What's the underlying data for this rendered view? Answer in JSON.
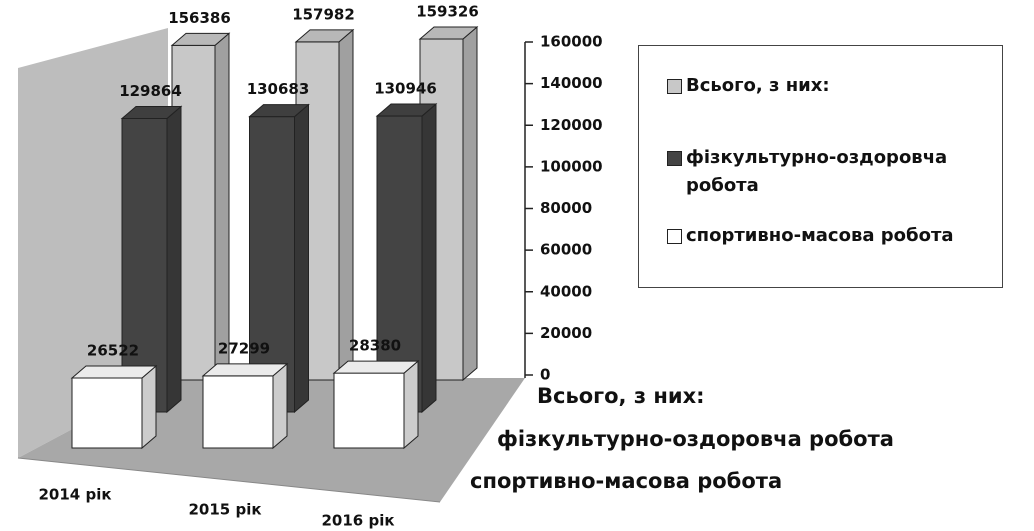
{
  "chart_data": {
    "type": "bar3d",
    "categories": [
      "2014 рік",
      "2015 рік",
      "2016 рік"
    ],
    "series": [
      {
        "name": "Всього, з них:",
        "color": "#c8c8c8",
        "values": [
          156386,
          157982,
          159326
        ]
      },
      {
        "name": "фізкультурно-оздоровча робота",
        "color": "#444444",
        "values": [
          129864,
          130683,
          130946
        ]
      },
      {
        "name": "спортивно-масова робота",
        "color": "#ffffff",
        "values": [
          26522,
          27299,
          28380
        ]
      }
    ],
    "ylim": [
      0,
      160000
    ],
    "yticks": [
      0,
      20000,
      40000,
      60000,
      80000,
      100000,
      120000,
      140000,
      160000
    ]
  }
}
